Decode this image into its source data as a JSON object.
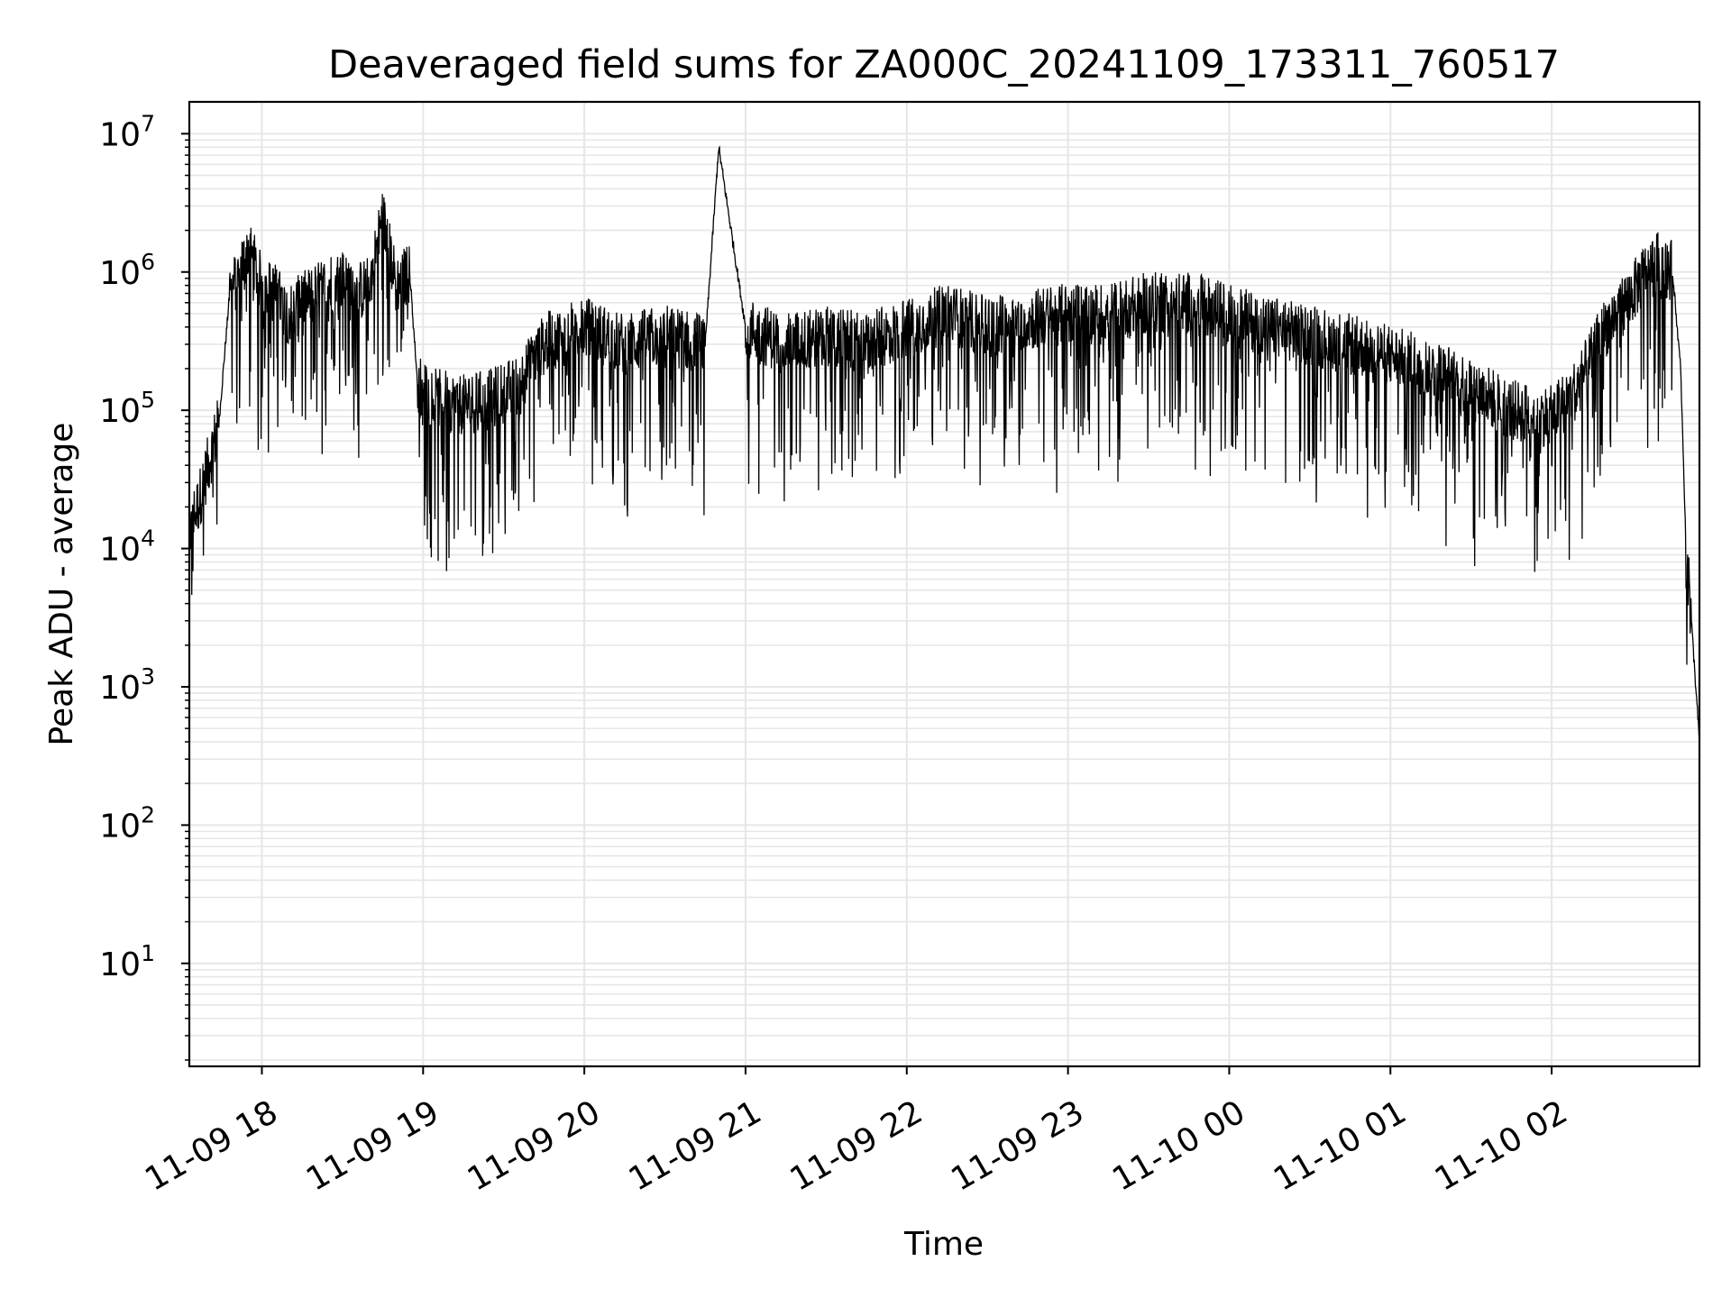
{
  "chart_data": {
    "type": "line",
    "title": "Deaveraged field sums for ZA000C_20241109_173311_760517",
    "xlabel": "Time",
    "ylabel": "Peak ADU - average",
    "yscale": "log",
    "xlim": [
      "2024-11-09 17:33",
      "2024-11-10 02:55"
    ],
    "ylim": [
      1.8,
      17000000
    ],
    "x_ticks": [
      "11-09 18",
      "11-09 19",
      "11-09 20",
      "11-09 21",
      "11-09 22",
      "11-09 23",
      "11-10 00",
      "11-10 01",
      "11-10 02"
    ],
    "y_ticks": [
      {
        "base": "10",
        "exp": "1",
        "value": 10
      },
      {
        "base": "10",
        "exp": "2",
        "value": 100
      },
      {
        "base": "10",
        "exp": "3",
        "value": 1000
      },
      {
        "base": "10",
        "exp": "4",
        "value": 10000
      },
      {
        "base": "10",
        "exp": "5",
        "value": 100000
      },
      {
        "base": "10",
        "exp": "6",
        "value": 1000000
      },
      {
        "base": "10",
        "exp": "7",
        "value": 10000000
      }
    ],
    "grid": true,
    "line_color": "#000000",
    "grid_color": "#e6e6e6",
    "series": [
      {
        "x": [
          "2024-11-09 17:33",
          "2024-11-09 17:36",
          "2024-11-09 17:40",
          "2024-11-09 17:44",
          "2024-11-09 17:48",
          "2024-11-09 17:52",
          "2024-11-09 17:55",
          "2024-11-09 18:00",
          "2024-11-09 18:05",
          "2024-11-09 18:10",
          "2024-11-09 18:15",
          "2024-11-09 18:20",
          "2024-11-09 18:25",
          "2024-11-09 18:30",
          "2024-11-09 18:35",
          "2024-11-09 18:40",
          "2024-11-09 18:45",
          "2024-11-09 18:50",
          "2024-11-09 18:55",
          "2024-11-09 18:58",
          "2024-11-09 19:05",
          "2024-11-09 19:15",
          "2024-11-09 19:25",
          "2024-11-09 19:35",
          "2024-11-09 19:45",
          "2024-11-09 20:00",
          "2024-11-09 20:15",
          "2024-11-09 20:30",
          "2024-11-09 20:45",
          "2024-11-09 20:50",
          "2024-11-09 21:00",
          "2024-11-09 21:15",
          "2024-11-09 21:30",
          "2024-11-09 21:45",
          "2024-11-09 22:00",
          "2024-11-09 22:15",
          "2024-11-09 22:30",
          "2024-11-09 22:45",
          "2024-11-09 23:00",
          "2024-11-09 23:15",
          "2024-11-09 23:30",
          "2024-11-09 23:45",
          "2024-11-10 00:00",
          "2024-11-10 00:15",
          "2024-11-10 00:30",
          "2024-11-10 00:45",
          "2024-11-10 01:00",
          "2024-11-10 01:15",
          "2024-11-10 01:30",
          "2024-11-10 01:45",
          "2024-11-10 02:00",
          "2024-11-10 02:10",
          "2024-11-10 02:20",
          "2024-11-10 02:30",
          "2024-11-10 02:35",
          "2024-11-10 02:40",
          "2024-11-10 02:45",
          "2024-11-10 02:48",
          "2024-11-10 02:50",
          "2024-11-10 02:52",
          "2024-11-10 02:55"
        ],
        "y": [
          13000,
          20000,
          40000,
          80000,
          700000,
          1000000,
          1500000,
          800000,
          700000,
          500000,
          600000,
          700000,
          800000,
          900000,
          700000,
          800000,
          2500000,
          800000,
          1000000,
          150000,
          120000,
          110000,
          120000,
          150000,
          300000,
          400000,
          300000,
          350000,
          300000,
          8000000,
          400000,
          300000,
          350000,
          300000,
          400000,
          500000,
          400000,
          450000,
          500000,
          500000,
          600000,
          600000,
          500000,
          400000,
          350000,
          300000,
          250000,
          200000,
          150000,
          100000,
          90000,
          150000,
          400000,
          700000,
          1000000,
          1200000,
          1000000,
          200000,
          10000,
          3000,
          400
        ]
      }
    ]
  }
}
